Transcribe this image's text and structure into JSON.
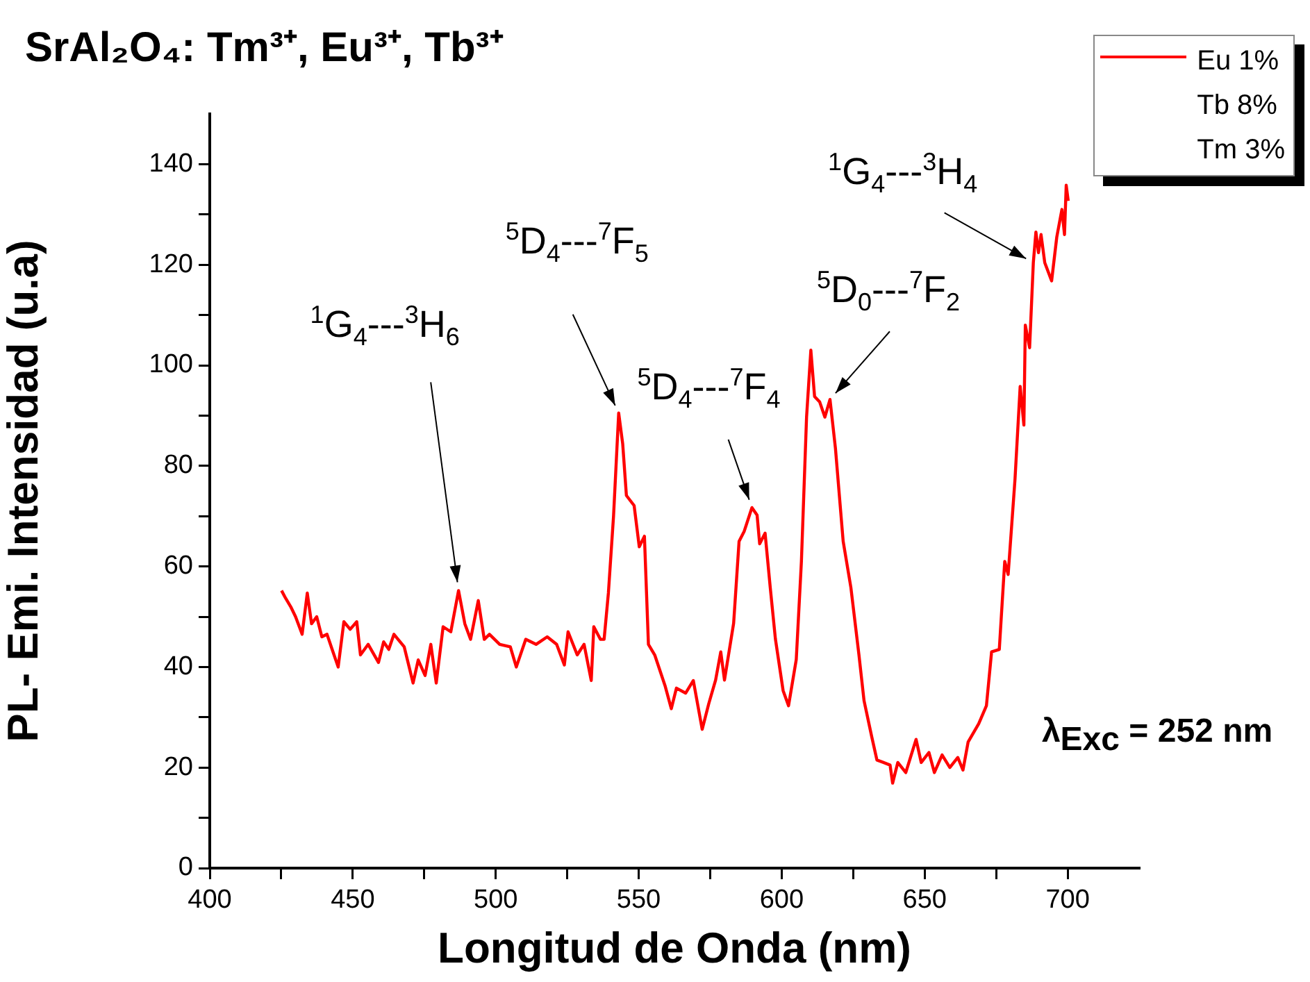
{
  "chart_data": {
    "type": "line",
    "title": "SrAl₂O₄: Tm³⁺, Eu³⁺, Tb³⁺",
    "xlabel": "Longitud de Onda (nm)",
    "ylabel": "PL- Emi. Intensidad (u.a)",
    "xlim": [
      400,
      725
    ],
    "xticks": [
      400,
      {
        "value": 425,
        "label": null
      },
      450,
      {
        "value": 475,
        "label": null
      },
      500,
      {
        "value": 525,
        "label": null
      },
      550,
      {
        "value": 575,
        "label": null
      },
      600,
      {
        "value": 625,
        "label": null
      },
      650,
      {
        "value": 675,
        "label": null
      },
      700
    ],
    "ylim": [
      0,
      150
    ],
    "yticks": [
      0,
      {
        "value": 10,
        "label": null
      },
      20,
      {
        "value": 30,
        "label": null
      },
      40,
      {
        "value": 50,
        "label": null
      },
      60,
      {
        "value": 70,
        "label": null
      },
      80,
      {
        "value": 90,
        "label": null
      },
      100,
      {
        "value": 110,
        "label": null
      },
      120,
      {
        "value": 130,
        "label": null
      },
      140
    ],
    "grid": false,
    "legend": "top right",
    "marker": "none",
    "line_style": "solid",
    "annotations": [
      {
        "text": "$^{1}$G$_{4}$---$^{3}$H$_{6}$",
        "x": 487,
        "y": 55.2
      },
      {
        "text": "$^{5}$D$_{4}$---$^{7}$F$_{5}$",
        "x": 543,
        "y": 90.5
      },
      {
        "text": "$^{5}$D$_{4}$---$^{7}$F$_{4}$",
        "x": 589.6,
        "y": 71.7
      },
      {
        "text": "$^{5}$D$_{0}$---$^{7}$F$_{2}$",
        "x": 616.9,
        "y": 93.2
      },
      {
        "text": "$^{1}$G$_{4}$---$^{3}$H$_{4}$",
        "x": 688,
        "y": 120.4
      },
      "λ$_{Exc}$ = 252 nm"
    ],
    "series": [
      {
        "name": "Eu 1%\nTb 8%\nTm 3%",
        "color": "#ff0000",
        "x": [
          425.1,
          426.5,
          428.3,
          430,
          432.3,
          434.1,
          435.6,
          437.4,
          439.2,
          441,
          443.1,
          444.9,
          446.9,
          449.1,
          451.4,
          452.7,
          455.4,
          459,
          460.8,
          462.6,
          464.4,
          468,
          471.1,
          472.9,
          475.3,
          477.3,
          479.2,
          481.6,
          484.3,
          487,
          489.2,
          491.2,
          493.9,
          496,
          497.8,
          501.4,
          505.1,
          507.2,
          510.5,
          514.1,
          518,
          521.3,
          524,
          525.3,
          528.5,
          530.9,
          533.4,
          534.3,
          536.6,
          537.9,
          539.4,
          541.2,
          543,
          544.4,
          545.7,
          548.4,
          550.2,
          552,
          553.4,
          555.6,
          559.2,
          561.4,
          563.2,
          566.4,
          569.1,
          572.2,
          574.5,
          576.9,
          578.7,
          580,
          583.2,
          585.1,
          586.9,
          589.6,
          591.4,
          592.3,
          594.2,
          596,
          597.8,
          600.5,
          602.4,
          605.1,
          606.9,
          608.7,
          610.2,
          611.5,
          613.3,
          615.1,
          616.9,
          618.8,
          621.5,
          624.2,
          627,
          628.8,
          631.5,
          633.3,
          637.9,
          638.8,
          640.6,
          643.4,
          647,
          648.8,
          651.5,
          653.4,
          656.1,
          658.8,
          661.6,
          663.4,
          665.2,
          668.9,
          671.6,
          673.4,
          676.1,
          678,
          679.2,
          681.6,
          683.4,
          684.7,
          685.2,
          686.7,
          688,
          688.9,
          689.8,
          690.7,
          692,
          694.4,
          696.2,
          698,
          698.9,
          699.5,
          700.2
        ],
        "values": [
          55.2,
          53.7,
          52,
          50,
          46.5,
          54.7,
          48.6,
          50,
          46,
          46.5,
          43,
          40,
          49,
          47.5,
          49,
          42.4,
          44.5,
          40.9,
          45,
          43.5,
          46.5,
          44,
          36.8,
          41.4,
          38.3,
          44.5,
          36.8,
          48,
          47,
          55.2,
          48.6,
          45.5,
          53.2,
          45.5,
          46.5,
          44.5,
          44,
          40,
          45.5,
          44.5,
          46,
          44.5,
          40.4,
          47,
          42.4,
          44.5,
          37.3,
          48,
          45.5,
          45.5,
          54.7,
          70,
          90.5,
          84.4,
          74.1,
          72.1,
          63.9,
          66,
          44.5,
          42.4,
          36.3,
          31.7,
          35.8,
          34.8,
          37.3,
          27.6,
          32.7,
          37.4,
          43,
          37.4,
          48.7,
          65,
          67,
          71.7,
          70.2,
          64.5,
          66.6,
          55.8,
          45.6,
          35.3,
          32.3,
          41.5,
          61,
          89.7,
          103,
          93.8,
          92.7,
          89.7,
          93.2,
          83.5,
          65,
          55.8,
          42.5,
          33.3,
          26.1,
          21.5,
          20.5,
          16.9,
          21,
          19,
          25.6,
          21,
          23,
          19,
          22.5,
          20,
          22,
          19.5,
          25.1,
          28.7,
          32.3,
          43,
          43.5,
          61,
          58.4,
          77.4,
          95.8,
          88.1,
          108,
          103.5,
          120.4,
          126.5,
          122.4,
          126,
          120.4,
          116.8,
          125.5,
          131,
          126,
          135.8,
          132.7
        ]
      }
    ]
  }
}
